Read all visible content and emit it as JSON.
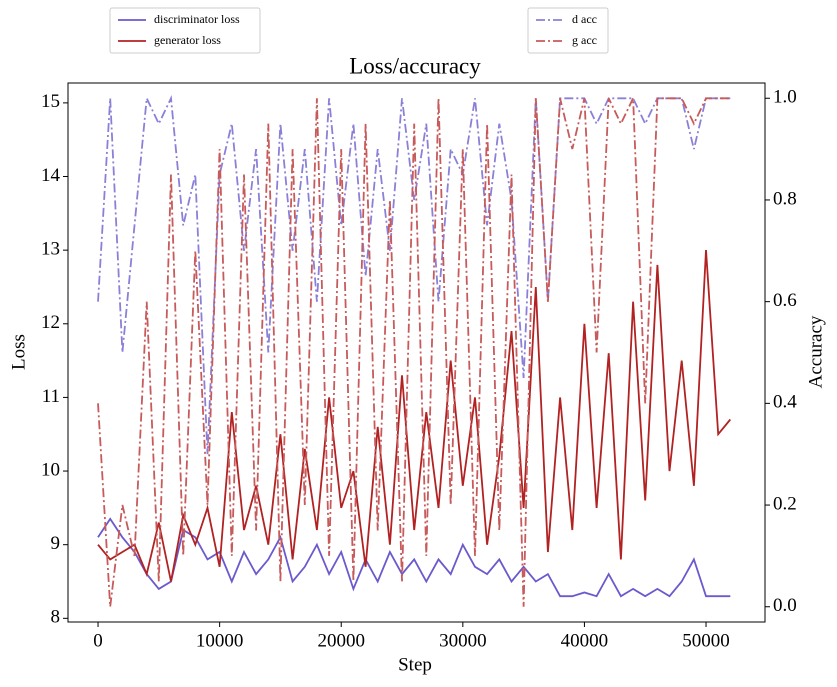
{
  "chart_data": {
    "type": "line",
    "title": "Loss/accuracy",
    "xlabel": "Step",
    "ylabel": "Loss",
    "y2label": "Accuracy",
    "x": [
      0,
      1000,
      2000,
      3000,
      4000,
      5000,
      6000,
      7000,
      8000,
      9000,
      10000,
      11000,
      12000,
      13000,
      14000,
      15000,
      16000,
      17000,
      18000,
      19000,
      20000,
      21000,
      22000,
      23000,
      24000,
      25000,
      26000,
      27000,
      28000,
      29000,
      30000,
      31000,
      32000,
      33000,
      34000,
      35000,
      36000,
      37000,
      38000,
      39000,
      40000,
      41000,
      42000,
      43000,
      44000,
      45000,
      46000,
      47000,
      48000,
      49000,
      50000,
      51000,
      52000
    ],
    "series": [
      {
        "name": "discriminator loss",
        "color": "#6a5acd",
        "axis": "y",
        "dash": "solid",
        "values": [
          9.1,
          9.35,
          9.1,
          8.9,
          8.6,
          8.4,
          8.5,
          9.2,
          9.1,
          8.8,
          8.9,
          8.5,
          8.9,
          8.6,
          8.8,
          9.1,
          8.5,
          8.7,
          9.0,
          8.6,
          8.9,
          8.4,
          8.8,
          8.5,
          8.9,
          8.6,
          8.8,
          8.5,
          8.8,
          8.6,
          9.0,
          8.7,
          8.6,
          8.8,
          8.5,
          8.7,
          8.5,
          8.6,
          8.3,
          8.3,
          8.35,
          8.3,
          8.6,
          8.3,
          8.4,
          8.3,
          8.4,
          8.3,
          8.5,
          8.8,
          8.3,
          8.3,
          8.3
        ]
      },
      {
        "name": "generator loss",
        "color": "#b22222",
        "axis": "y",
        "dash": "solid",
        "values": [
          9.0,
          8.8,
          8.9,
          9.0,
          8.6,
          9.3,
          8.5,
          9.4,
          9.0,
          9.5,
          8.7,
          10.8,
          9.2,
          9.8,
          9.0,
          10.5,
          8.8,
          10.3,
          9.2,
          11.0,
          9.5,
          10.0,
          8.7,
          10.6,
          9.0,
          11.3,
          9.2,
          10.8,
          9.5,
          11.5,
          9.8,
          11.0,
          9.0,
          10.2,
          11.9,
          9.5,
          12.5,
          8.9,
          11.0,
          9.2,
          12.0,
          9.5,
          11.6,
          8.8,
          12.3,
          9.6,
          12.8,
          10.0,
          11.5,
          9.8,
          13.0,
          10.5,
          10.7
        ]
      },
      {
        "name": "d acc",
        "color": "#8b80d8",
        "axis": "y2",
        "dash": "dashdot",
        "values": [
          0.6,
          1.0,
          0.5,
          0.75,
          1.0,
          0.95,
          1.0,
          0.75,
          0.85,
          0.3,
          0.85,
          0.95,
          0.7,
          0.9,
          0.5,
          0.95,
          0.7,
          0.9,
          0.6,
          1.0,
          0.75,
          0.95,
          0.65,
          0.9,
          0.7,
          1.0,
          0.8,
          0.95,
          0.6,
          0.9,
          0.85,
          1.0,
          0.75,
          0.95,
          0.8,
          0.45,
          1.0,
          0.6,
          1.0,
          1.0,
          1.0,
          0.95,
          1.0,
          1.0,
          1.0,
          0.95,
          1.0,
          1.0,
          1.0,
          0.9,
          1.0,
          1.0,
          1.0
        ]
      },
      {
        "name": "g acc",
        "color": "#c75a5a",
        "axis": "y2",
        "dash": "dashdot",
        "values": [
          0.4,
          0.0,
          0.2,
          0.1,
          0.6,
          0.05,
          0.85,
          0.1,
          0.7,
          0.2,
          0.9,
          0.1,
          0.85,
          0.15,
          0.95,
          0.05,
          0.9,
          0.2,
          1.0,
          0.1,
          0.9,
          0.05,
          0.95,
          0.15,
          0.8,
          0.05,
          0.95,
          0.1,
          1.0,
          0.2,
          0.9,
          0.1,
          0.95,
          0.15,
          0.85,
          0.0,
          1.0,
          0.6,
          1.0,
          0.9,
          1.0,
          0.5,
          1.0,
          0.95,
          1.0,
          0.4,
          1.0,
          1.0,
          1.0,
          0.95,
          1.0,
          1.0,
          1.0
        ]
      }
    ],
    "xlim": [
      -2470,
      54850
    ],
    "xticks": [
      0,
      10000,
      20000,
      30000,
      40000,
      50000
    ],
    "ylim": [
      7.95,
      15.27
    ],
    "yticks": [
      8,
      9,
      10,
      11,
      12,
      13,
      14,
      15
    ],
    "y2lim": [
      -0.03,
      1.03
    ],
    "y2ticks": [
      {
        "value": 0,
        "label": "0.0"
      },
      0.2,
      0.4,
      0.6,
      0.8,
      {
        "value": 1,
        "label": "1.0"
      }
    ]
  }
}
